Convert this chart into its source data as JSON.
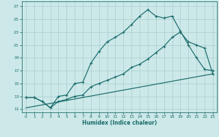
{
  "xlabel": "Humidex (Indice chaleur)",
  "xlim": [
    -0.5,
    23.5
  ],
  "ylim": [
    10.5,
    27.8
  ],
  "xticks": [
    0,
    1,
    2,
    3,
    4,
    5,
    6,
    7,
    8,
    9,
    10,
    11,
    12,
    13,
    14,
    15,
    16,
    17,
    18,
    19,
    20,
    21,
    22,
    23
  ],
  "yticks": [
    11,
    13,
    15,
    17,
    19,
    21,
    23,
    25,
    27
  ],
  "bg_color": "#cce8e8",
  "grid_color": "#a8cecc",
  "line_color": "#1a6b6b",
  "line1_x": [
    0,
    1,
    2,
    3,
    4,
    5,
    6,
    7,
    8,
    9,
    10,
    11,
    12,
    13,
    14,
    15,
    16,
    17,
    18,
    19,
    20,
    21,
    22,
    23
  ],
  "line1_y": [
    12.8,
    12.8,
    12.2,
    11.2,
    13.0,
    13.2,
    15.0,
    15.2,
    18.2,
    20.0,
    21.5,
    22.2,
    23.0,
    24.2,
    25.5,
    26.5,
    25.5,
    25.2,
    25.5,
    23.2,
    21.0,
    19.0,
    17.2,
    17.0
  ],
  "line2_x": [
    0,
    1,
    2,
    3,
    4,
    5,
    6,
    7,
    8,
    9,
    10,
    11,
    12,
    13,
    14,
    15,
    16,
    17,
    18,
    19,
    20,
    21,
    22,
    23
  ],
  "line2_y": [
    12.8,
    12.8,
    12.2,
    11.2,
    12.2,
    12.5,
    13.0,
    13.2,
    14.5,
    15.0,
    15.5,
    16.0,
    16.5,
    17.5,
    18.0,
    18.8,
    19.8,
    20.8,
    22.2,
    23.0,
    21.5,
    21.0,
    20.5,
    16.5
  ],
  "line3_x": [
    0,
    23
  ],
  "line3_y": [
    11.2,
    16.5
  ]
}
